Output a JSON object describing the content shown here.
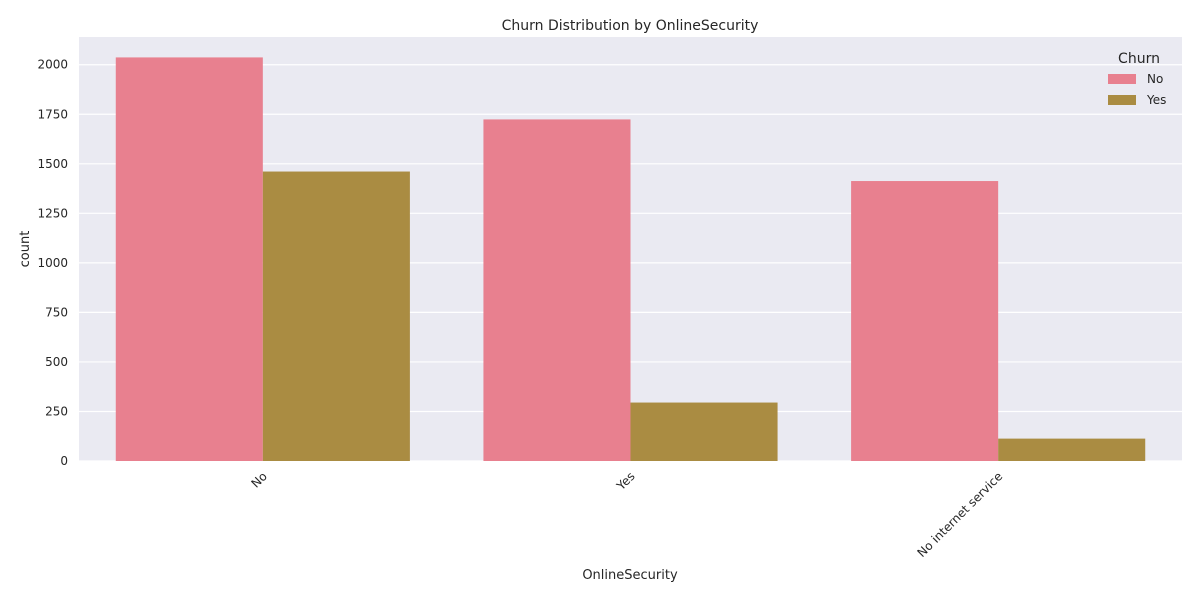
{
  "chart_data": {
    "type": "bar",
    "title": "Churn Distribution by OnlineSecurity",
    "xlabel": "OnlineSecurity",
    "ylabel": "count",
    "categories": [
      "No",
      "Yes",
      "No internet service"
    ],
    "series": [
      {
        "name": "No",
        "color": "#E8808F",
        "values": [
          2037,
          1724,
          1413
        ]
      },
      {
        "name": "Yes",
        "color": "#AA8C42",
        "values": [
          1461,
          295,
          113
        ]
      }
    ],
    "ylim": [
      0,
      2140
    ],
    "yticks": [
      0,
      250,
      500,
      750,
      1000,
      1250,
      1500,
      1750,
      2000
    ],
    "grid": true,
    "legend": {
      "title": "Churn",
      "position": "top-right"
    },
    "background": "#EAEAF2"
  }
}
